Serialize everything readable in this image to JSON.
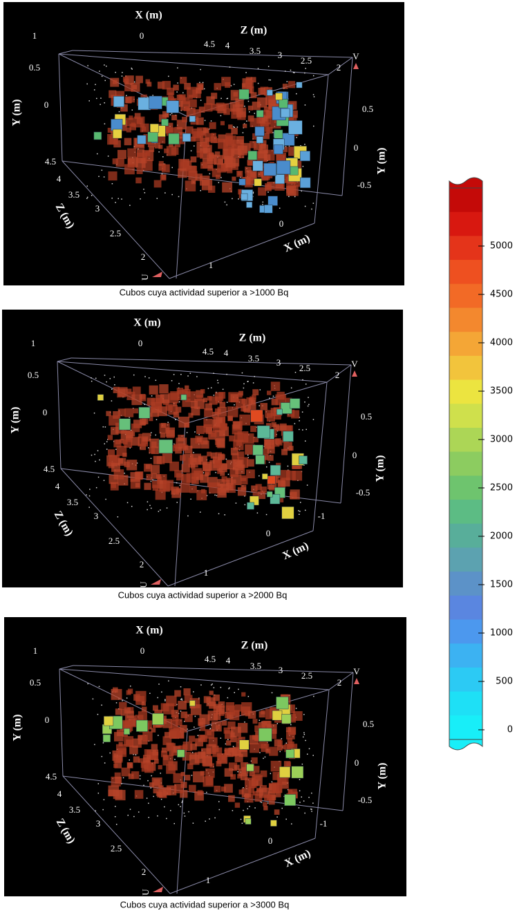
{
  "panels": [
    {
      "caption": "Cubos cuya actividad superior a >1000 Bq",
      "x_axis": "X (m)",
      "z_axis": "Z (m)",
      "y_axis": "Y (m)",
      "x_ticks_top": [
        "1",
        "0"
      ],
      "z_ticks_top": [
        "4.5",
        "4",
        "3.5",
        "3",
        "2.5",
        "2"
      ],
      "y_ticks_left": [
        "0.5",
        "0"
      ],
      "y_ticks_right": [
        "0.5",
        "0",
        "-0.5"
      ],
      "z_ticks_left": [
        "4.5",
        "4",
        "3.5",
        "3",
        "2.5",
        "2"
      ],
      "x_ticks_bottom": [
        "0",
        "1"
      ],
      "corner_top": "V",
      "corner_bottom": "U"
    },
    {
      "caption": "Cubos cuya actividad superior a >2000 Bq",
      "x_axis": "X (m)",
      "z_axis": "Z (m)",
      "y_axis": "Y (m)",
      "x_ticks_top": [
        "1",
        "0"
      ],
      "z_ticks_top": [
        "4.5",
        "4",
        "3.5",
        "3",
        "2.5",
        "2"
      ],
      "y_ticks_left": [
        "0.5",
        "0"
      ],
      "y_ticks_right": [
        "0.5",
        "0",
        "-0.5"
      ],
      "z_ticks_left": [
        "4.5",
        "4",
        "3.5",
        "3",
        "2.5",
        "2"
      ],
      "x_ticks_bottom": [
        "-1",
        "0",
        "1"
      ],
      "corner_top": "V",
      "corner_bottom": "U"
    },
    {
      "caption": "Cubos cuya actividad superior a >3000 Bq",
      "x_axis": "X (m)",
      "z_axis": "Z (m)",
      "y_axis": "Y (m)",
      "x_ticks_top": [
        "1",
        "0"
      ],
      "z_ticks_top": [
        "4.5",
        "4",
        "3.5",
        "3",
        "2.5",
        "2"
      ],
      "y_ticks_left": [
        "0.5",
        "0"
      ],
      "y_ticks_right": [
        "0.5",
        "0",
        "-0.5"
      ],
      "z_ticks_left": [
        "4.5",
        "4",
        "3.5",
        "3",
        "2.5",
        "2"
      ],
      "x_ticks_bottom": [
        "-1",
        "0",
        "1"
      ],
      "corner_top": "V",
      "corner_bottom": "U"
    }
  ],
  "colorbar": {
    "lim": [
      -100,
      5600
    ],
    "ticks": [
      5000,
      4500,
      4000,
      3500,
      3000,
      2500,
      2000,
      1500,
      1000,
      500,
      0
    ],
    "colors": [
      "#c40a08",
      "#d81810",
      "#e4341a",
      "#ee5020",
      "#f26a26",
      "#f3882e",
      "#f4a636",
      "#f2c43c",
      "#ece440",
      "#cfe04c",
      "#acd656",
      "#8ccc60",
      "#6ec46e",
      "#5cbc84",
      "#58ae9a",
      "#5ca2b0",
      "#5c92c8",
      "#5a86e0",
      "#4c98ee",
      "#3cb2f2",
      "#2ccaf4",
      "#1ee0f6",
      "#18eef8"
    ]
  }
}
